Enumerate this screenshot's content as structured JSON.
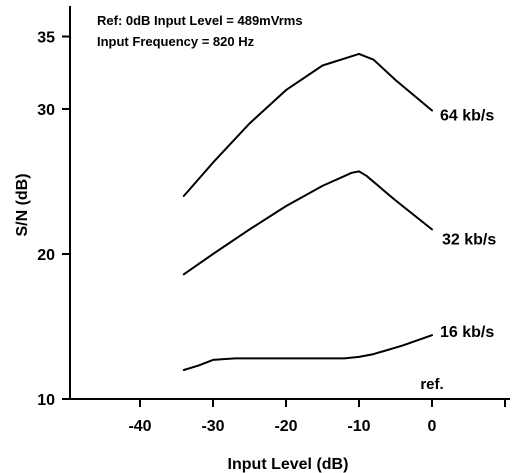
{
  "chart_data": {
    "type": "line",
    "xlabel": "Input Level (dB)",
    "ylabel": "S/N (dB)",
    "xlim": [
      -50,
      10
    ],
    "ylim": [
      10,
      36
    ],
    "xticks": [
      -40,
      -30,
      -20,
      -10,
      0
    ],
    "yticks": [
      10,
      20,
      30,
      35
    ],
    "grid": false,
    "annotations": {
      "note_line1": "Ref: 0dB Input Level = 489mVrms",
      "note_line2": "Input Frequency = 820 Hz",
      "ref": "ref."
    },
    "series": [
      {
        "name": "64 kb/s",
        "points": [
          [
            -34,
            24
          ],
          [
            -30,
            26.3
          ],
          [
            -25,
            29
          ],
          [
            -20,
            31.3
          ],
          [
            -15,
            33
          ],
          [
            -10,
            33.8
          ],
          [
            -8,
            33.4
          ],
          [
            -5,
            32
          ],
          [
            0,
            29.9
          ]
        ]
      },
      {
        "name": "32 kb/s",
        "points": [
          [
            -34,
            18.6
          ],
          [
            -30,
            20
          ],
          [
            -25,
            21.7
          ],
          [
            -20,
            23.3
          ],
          [
            -15,
            24.7
          ],
          [
            -11,
            25.6
          ],
          [
            -10,
            25.7
          ],
          [
            -9,
            25.4
          ],
          [
            -5,
            23.7
          ],
          [
            0,
            21.7
          ]
        ]
      },
      {
        "name": "16 kb/s",
        "points": [
          [
            -34,
            12
          ],
          [
            -32,
            12.3
          ],
          [
            -30,
            12.7
          ],
          [
            -27,
            12.8
          ],
          [
            -20,
            12.8
          ],
          [
            -12,
            12.8
          ],
          [
            -10,
            12.9
          ],
          [
            -8,
            13.1
          ],
          [
            -4,
            13.7
          ],
          [
            0,
            14.4
          ]
        ]
      }
    ]
  }
}
